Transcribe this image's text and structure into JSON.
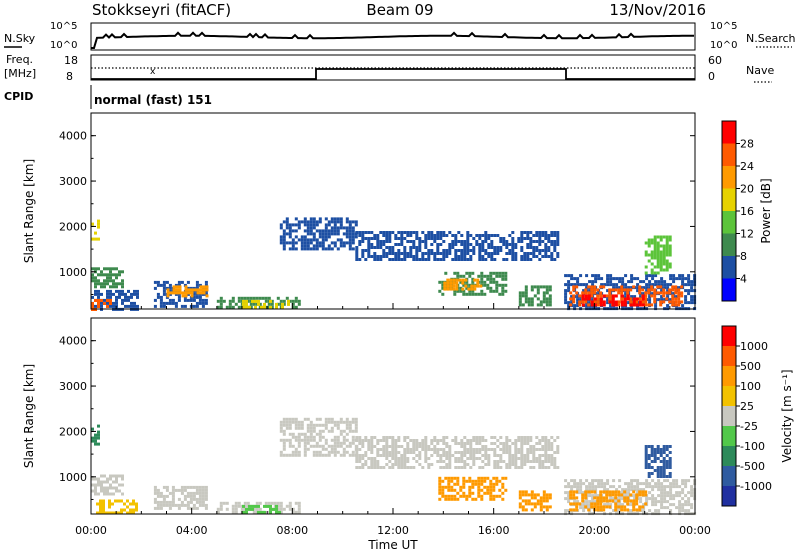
{
  "header": {
    "station": "Stokkseyri (fitACF)",
    "beam": "Beam 09",
    "date": "13/Nov/2016"
  },
  "noise_panel": {
    "left_label": "N.Sky",
    "right_label": "N.Search",
    "left_ticks": [
      "10^5",
      "10^0"
    ],
    "right_ticks": [
      "10^5",
      "10^0"
    ]
  },
  "freq_panel": {
    "left_label_1": "Freq.",
    "left_label_2": "[MHz]",
    "left_ticks": [
      "18",
      "8"
    ],
    "right_ticks": [
      "60",
      "0"
    ],
    "right_label": "Nave",
    "cpid_label": "CPID",
    "cpid_text": "normal (fast) 151"
  },
  "chart_data": [
    {
      "type": "heatmap",
      "name": "power",
      "ylabel": "Slant Range [km]",
      "xlabel": "",
      "xticks": [
        "00:00",
        "04:00",
        "08:00",
        "12:00",
        "16:00",
        "20:00",
        "00:00"
      ],
      "xlim": [
        0,
        24
      ],
      "ylim": [
        180,
        4500
      ],
      "yticks": [
        "1000",
        "2000",
        "3000",
        "4000"
      ],
      "colorbar": {
        "label": "Power [dB]",
        "ticks": [
          "4",
          "8",
          "12",
          "16",
          "20",
          "24",
          "28"
        ],
        "colors": [
          "#0000ff",
          "#1d4fa3",
          "#3e8a4e",
          "#5cc43a",
          "#e6d200",
          "#ff9a00",
          "#ff5a00",
          "#ff0000"
        ],
        "range": [
          0,
          32
        ]
      },
      "regions": [
        {
          "t0": 0.0,
          "t1": 0.3,
          "r0": 1700,
          "r1": 2150,
          "color": "#e6d200"
        },
        {
          "t0": 0.0,
          "t1": 1.2,
          "r0": 700,
          "r1": 1100,
          "color": "#3e8a4e"
        },
        {
          "t0": 0.0,
          "t1": 1.8,
          "r0": 200,
          "r1": 600,
          "color": "#1d4fa3"
        },
        {
          "t0": 0.0,
          "t1": 0.8,
          "r0": 200,
          "r1": 400,
          "color": "#ff5a00"
        },
        {
          "t0": 2.5,
          "t1": 4.6,
          "r0": 250,
          "r1": 800,
          "color": "#1d4fa3"
        },
        {
          "t0": 3.0,
          "t1": 4.6,
          "r0": 450,
          "r1": 700,
          "color": "#ff9a00"
        },
        {
          "t0": 5.0,
          "t1": 8.3,
          "r0": 200,
          "r1": 450,
          "color": "#3e8a4e"
        },
        {
          "t0": 6.0,
          "t1": 7.8,
          "r0": 220,
          "r1": 380,
          "color": "#e6d200"
        },
        {
          "t0": 7.5,
          "t1": 10.5,
          "r0": 1500,
          "r1": 2200,
          "color": "#1d4fa3"
        },
        {
          "t0": 10.5,
          "t1": 18.5,
          "r0": 1300,
          "r1": 1900,
          "color": "#1d4fa3"
        },
        {
          "t0": 13.8,
          "t1": 16.5,
          "r0": 500,
          "r1": 1000,
          "color": "#3e8a4e"
        },
        {
          "t0": 14.0,
          "t1": 15.5,
          "r0": 600,
          "r1": 850,
          "color": "#ff9a00"
        },
        {
          "t0": 17.0,
          "t1": 18.2,
          "r0": 250,
          "r1": 700,
          "color": "#3e8a4e"
        },
        {
          "t0": 18.8,
          "t1": 24.0,
          "r0": 200,
          "r1": 950,
          "color": "#1d4fa3"
        },
        {
          "t0": 19.0,
          "t1": 23.5,
          "r0": 250,
          "r1": 700,
          "color": "#ff5a00"
        },
        {
          "t0": 19.5,
          "t1": 22.0,
          "r0": 250,
          "r1": 500,
          "color": "#ff0000"
        },
        {
          "t0": 22.0,
          "t1": 23.0,
          "r0": 1000,
          "r1": 1800,
          "color": "#5cc43a"
        }
      ]
    },
    {
      "type": "heatmap",
      "name": "velocity",
      "ylabel": "Slant Range [km]",
      "xlabel": "Time UT",
      "xticks": [
        "00:00",
        "04:00",
        "08:00",
        "12:00",
        "16:00",
        "20:00",
        "00:00"
      ],
      "xlim": [
        0,
        24
      ],
      "ylim": [
        180,
        4500
      ],
      "yticks": [
        "1000",
        "2000",
        "3000",
        "4000"
      ],
      "colorbar": {
        "label": "Velocity [m s⁻¹]",
        "ticks": [
          "1000",
          "500",
          "100",
          "25",
          "-25",
          "-100",
          "-500",
          "-1000"
        ],
        "colors": [
          "#2030a0",
          "#2f5ba0",
          "#2d8a5a",
          "#52c84a",
          "#c8c8c0",
          "#f3c200",
          "#ff9a00",
          "#ff5a00",
          "#ff0000"
        ],
        "range": [
          -1000,
          1000
        ]
      },
      "regions": [
        {
          "t0": 0.0,
          "t1": 0.3,
          "r0": 1700,
          "r1": 2150,
          "color": "#2d8a5a"
        },
        {
          "t0": 0.0,
          "t1": 1.2,
          "r0": 600,
          "r1": 1050,
          "color": "#c8c8c0"
        },
        {
          "t0": 0.2,
          "t1": 1.8,
          "r0": 200,
          "r1": 500,
          "color": "#f3c200"
        },
        {
          "t0": 2.5,
          "t1": 4.6,
          "r0": 300,
          "r1": 800,
          "color": "#c8c8c0"
        },
        {
          "t0": 5.0,
          "t1": 8.3,
          "r0": 200,
          "r1": 450,
          "color": "#c8c8c0"
        },
        {
          "t0": 6.0,
          "t1": 7.5,
          "r0": 220,
          "r1": 380,
          "color": "#52c84a"
        },
        {
          "t0": 7.5,
          "t1": 10.5,
          "r0": 1500,
          "r1": 2300,
          "color": "#c8c8c0"
        },
        {
          "t0": 10.5,
          "t1": 18.5,
          "r0": 1200,
          "r1": 1900,
          "color": "#c8c8c0"
        },
        {
          "t0": 13.8,
          "t1": 16.5,
          "r0": 500,
          "r1": 1000,
          "color": "#ff9a00"
        },
        {
          "t0": 17.0,
          "t1": 18.2,
          "r0": 300,
          "r1": 700,
          "color": "#ff9a00"
        },
        {
          "t0": 18.8,
          "t1": 24.0,
          "r0": 200,
          "r1": 950,
          "color": "#c8c8c0"
        },
        {
          "t0": 19.0,
          "t1": 22.0,
          "r0": 250,
          "r1": 700,
          "color": "#ff9a00"
        },
        {
          "t0": 22.0,
          "t1": 23.0,
          "r0": 1000,
          "r1": 1700,
          "color": "#2f5ba0"
        }
      ]
    }
  ]
}
